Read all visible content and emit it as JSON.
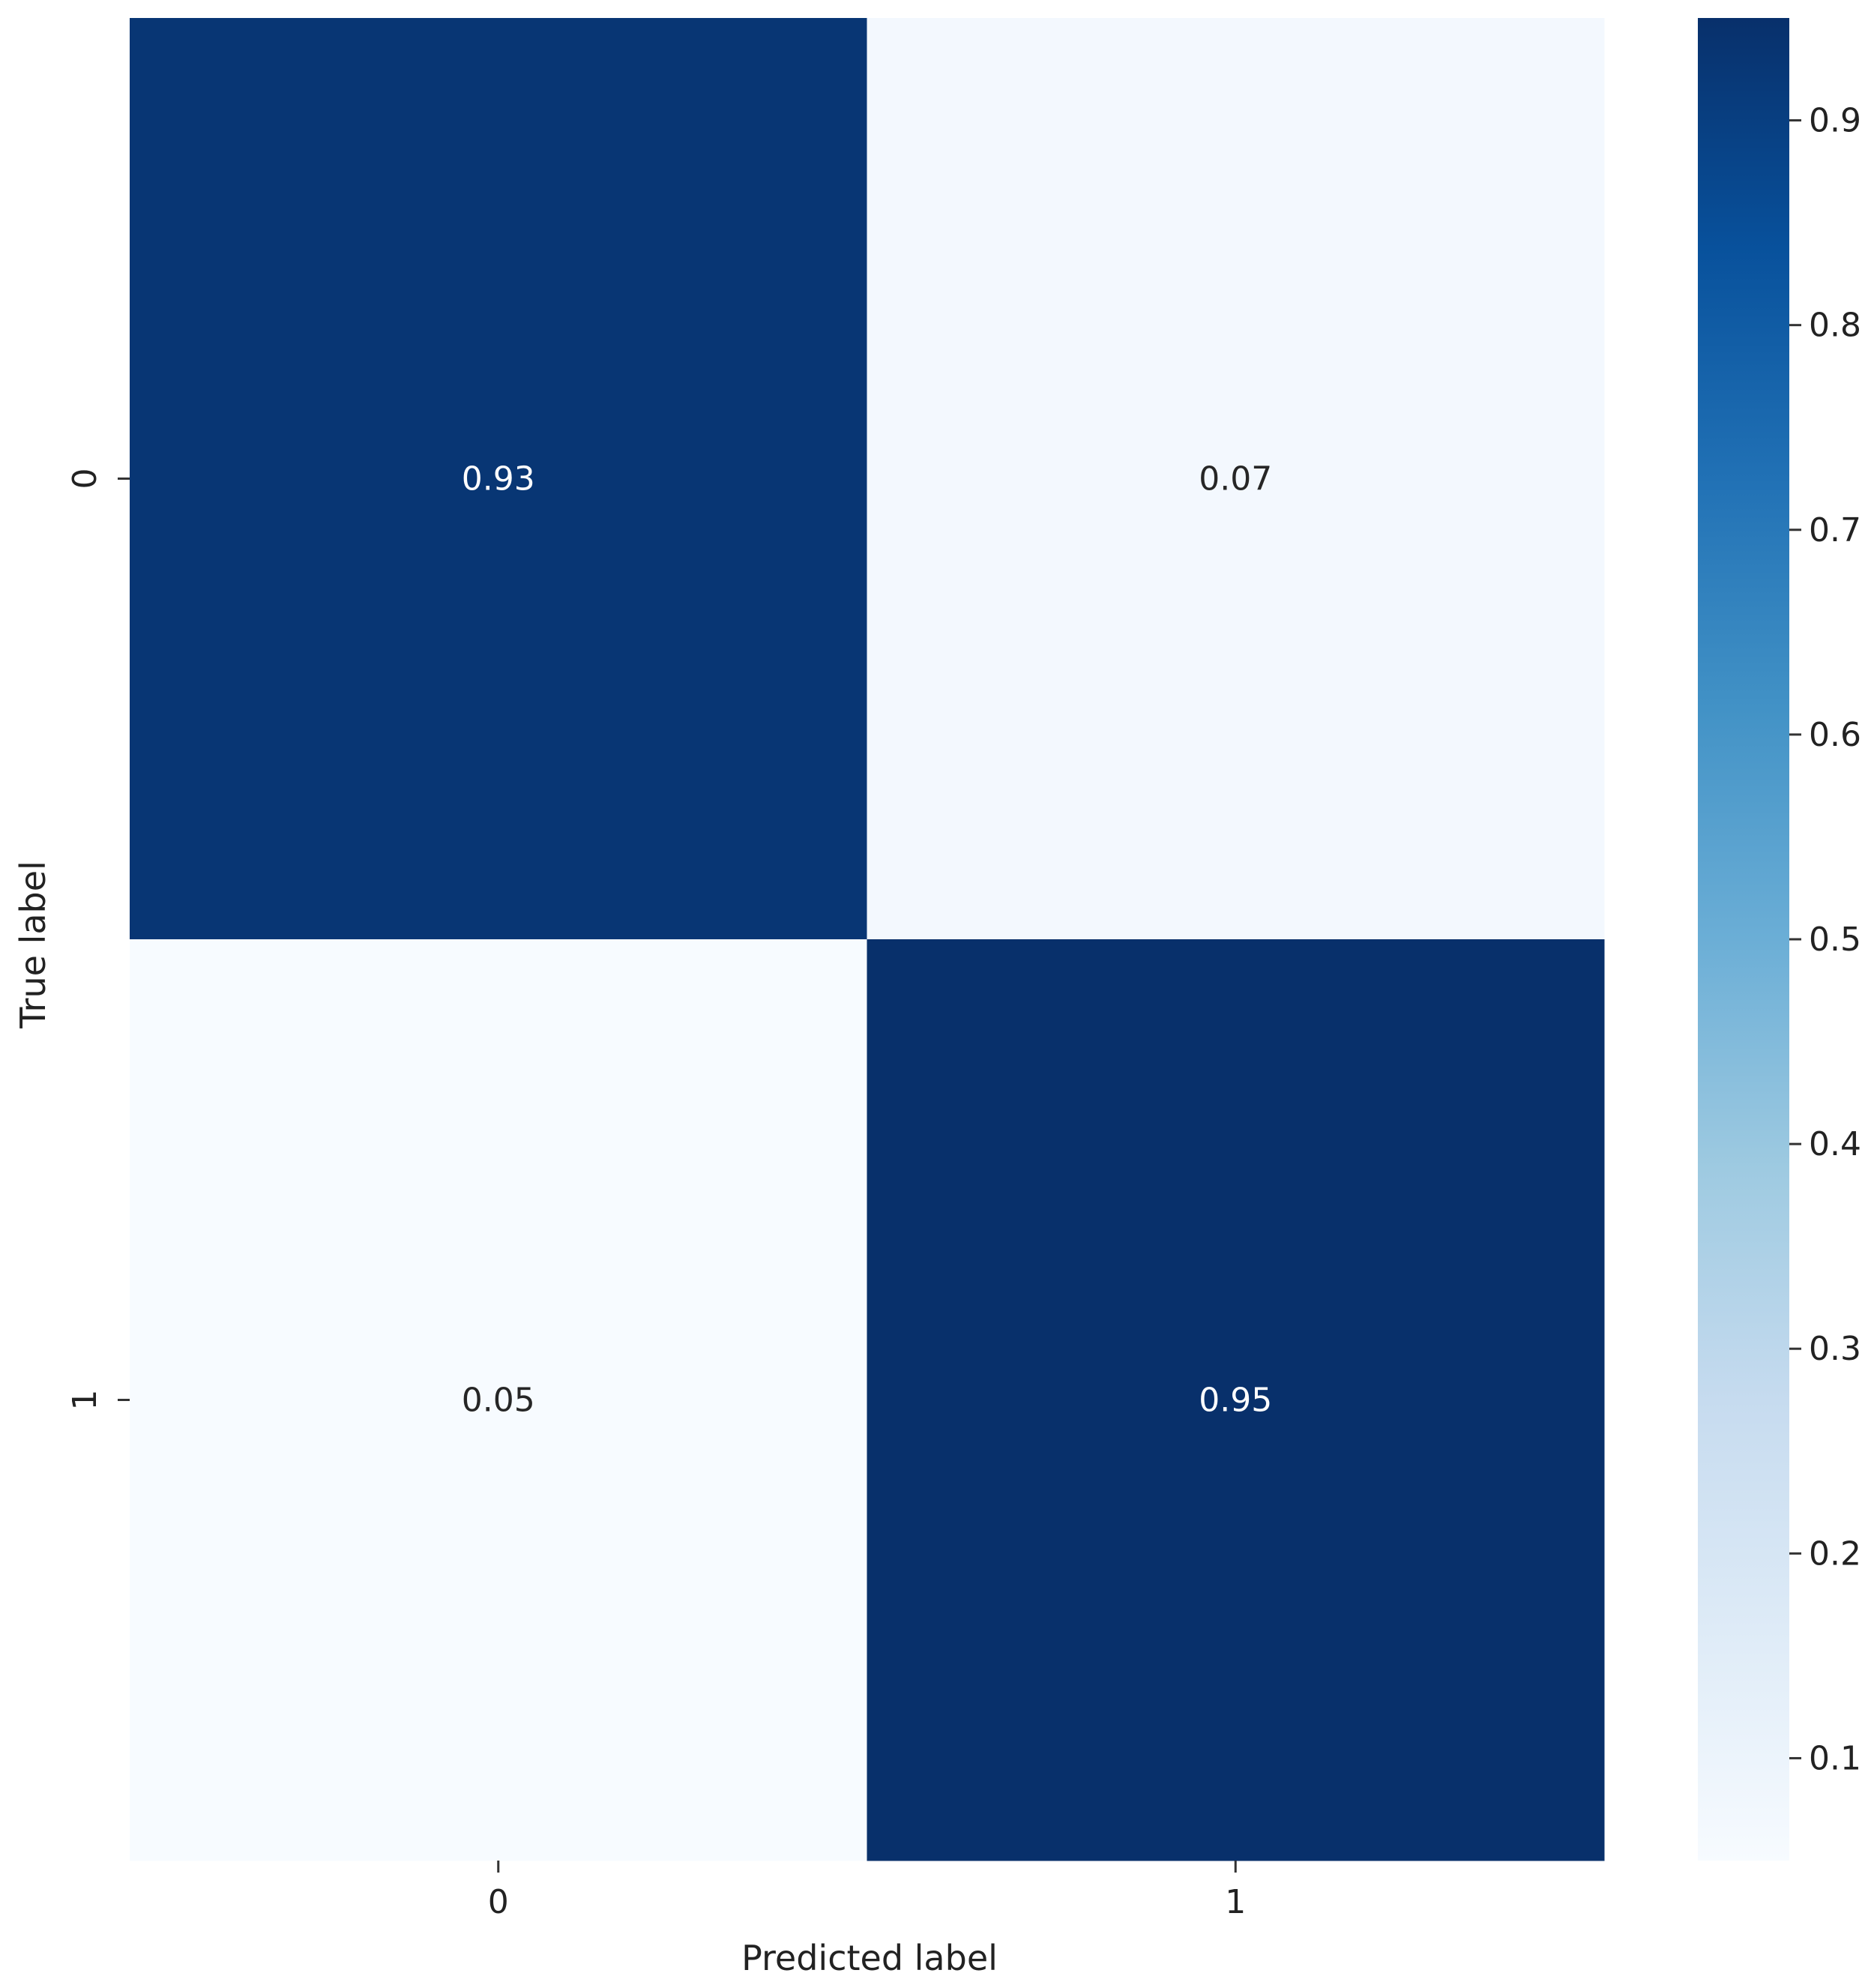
{
  "chart_data": {
    "type": "heatmap",
    "title": "",
    "xlabel": "Predicted label",
    "ylabel": "True label",
    "x_categories": [
      "0",
      "1"
    ],
    "y_categories": [
      "0",
      "1"
    ],
    "values": [
      [
        0.93,
        0.07
      ],
      [
        0.05,
        0.95
      ]
    ],
    "cell_labels": [
      [
        "0.93",
        "0.07"
      ],
      [
        "0.05",
        "0.95"
      ]
    ],
    "colormap": "Blues",
    "colorbar": {
      "vmin": 0.05,
      "vmax": 0.95,
      "ticks": [
        0.1,
        0.2,
        0.3,
        0.4,
        0.5,
        0.6,
        0.7,
        0.8,
        0.9
      ],
      "tick_labels": [
        "0.1",
        "0.2",
        "0.3",
        "0.4",
        "0.5",
        "0.6",
        "0.7",
        "0.8",
        "0.9"
      ]
    },
    "grid": false
  }
}
